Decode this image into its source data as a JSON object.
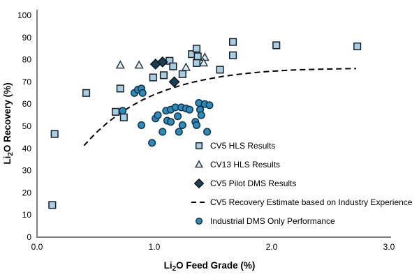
{
  "figure": {
    "background": "#ffffff",
    "axis_color": "#7f7f7f",
    "text_color": "#000000"
  },
  "chart_data": {
    "type": "scatter",
    "title": "",
    "xlabel": {
      "pre": "Li",
      "sub": "2",
      "post": "O Feed Grade (%)"
    },
    "ylabel": {
      "pre": "Li",
      "sub": "2",
      "post": "O Recovery (%)"
    },
    "xlim": [
      0.0,
      3.0
    ],
    "ylim": [
      0,
      100
    ],
    "grid": false,
    "legend_position": "inside-lower-right",
    "xticks": [
      {
        "v": 0.0,
        "label": "0.0"
      },
      {
        "v": 1.0,
        "label": "1.0"
      },
      {
        "v": 2.0,
        "label": "2.0"
      },
      {
        "v": 3.0,
        "label": "3.0"
      }
    ],
    "yticks": [
      {
        "v": 0,
        "label": "0"
      },
      {
        "v": 10,
        "label": "10"
      },
      {
        "v": 20,
        "label": "20"
      },
      {
        "v": 30,
        "label": "30"
      },
      {
        "v": 40,
        "label": "40"
      },
      {
        "v": 50,
        "label": "50"
      },
      {
        "v": 60,
        "label": "60"
      },
      {
        "v": 70,
        "label": "70"
      },
      {
        "v": 80,
        "label": "80"
      },
      {
        "v": 90,
        "label": "90"
      },
      {
        "v": 100,
        "label": "100"
      }
    ],
    "series": [
      {
        "name": "CV5 HLS Results",
        "marker": "square",
        "fill": "#a9cde3",
        "stroke": "#161f29",
        "points": [
          [
            0.13,
            14.5
          ],
          [
            0.15,
            46.5
          ],
          [
            0.42,
            65
          ],
          [
            0.67,
            56.5
          ],
          [
            0.71,
            67
          ],
          [
            0.74,
            54
          ],
          [
            0.99,
            72
          ],
          [
            1.08,
            73
          ],
          [
            1.13,
            79.5
          ],
          [
            1.16,
            77
          ],
          [
            1.24,
            73.5
          ],
          [
            1.32,
            82.5
          ],
          [
            1.36,
            85
          ],
          [
            1.37,
            81.5
          ],
          [
            1.36,
            78.5
          ],
          [
            1.56,
            75.5
          ],
          [
            1.67,
            88
          ],
          [
            1.67,
            82
          ],
          [
            2.04,
            86.5
          ],
          [
            2.73,
            86
          ]
        ]
      },
      {
        "name": "CV13 HLS Results",
        "marker": "triangle",
        "fill": "#e2ecf4",
        "stroke": "#2c3a46",
        "points": [
          [
            0.71,
            77.5
          ],
          [
            0.87,
            77.5
          ],
          [
            1.27,
            76.5
          ],
          [
            1.43,
            81
          ],
          [
            1.42,
            78.5
          ]
        ]
      },
      {
        "name": "CV5 Pilot DMS Results",
        "marker": "diamond",
        "fill": "#1d3d55",
        "stroke": "#0c161f",
        "points": [
          [
            1.01,
            78
          ],
          [
            1.07,
            79
          ],
          [
            1.17,
            70
          ]
        ]
      },
      {
        "name": "CV5 Recovery Estimate based on Industry Experience",
        "marker": "dashed-line",
        "color": "#000000",
        "points": [
          [
            0.4,
            41.3
          ],
          [
            0.5,
            46.9
          ],
          [
            0.6,
            51.6
          ],
          [
            0.7,
            55.6
          ],
          [
            0.8,
            59.0
          ],
          [
            0.9,
            61.9
          ],
          [
            1.0,
            64.3
          ],
          [
            1.1,
            66.3
          ],
          [
            1.2,
            68.0
          ],
          [
            1.3,
            69.5
          ],
          [
            1.4,
            70.7
          ],
          [
            1.5,
            71.7
          ],
          [
            1.6,
            72.6
          ],
          [
            1.7,
            73.3
          ],
          [
            1.8,
            73.9
          ],
          [
            1.9,
            74.4
          ],
          [
            2.0,
            74.8
          ],
          [
            2.2,
            75.4
          ],
          [
            2.4,
            75.7
          ],
          [
            2.6,
            75.9
          ],
          [
            2.72,
            76.0
          ]
        ]
      },
      {
        "name": "Industrial DMS Only Performance",
        "marker": "circle",
        "fill": "#2d8bbc",
        "stroke": "#113349",
        "points": [
          [
            0.73,
            57
          ],
          [
            0.83,
            65
          ],
          [
            0.86,
            66.5
          ],
          [
            0.89,
            67
          ],
          [
            0.9,
            65
          ],
          [
            0.89,
            50.5
          ],
          [
            0.98,
            42.5
          ],
          [
            1.01,
            53.5
          ],
          [
            1.03,
            55
          ],
          [
            1.07,
            47.5
          ],
          [
            1.1,
            57
          ],
          [
            1.11,
            52.5
          ],
          [
            1.14,
            52
          ],
          [
            1.14,
            57.5
          ],
          [
            1.18,
            58.5
          ],
          [
            1.2,
            54.5
          ],
          [
            1.21,
            47.5
          ],
          [
            1.23,
            58.5
          ],
          [
            1.24,
            50.5
          ],
          [
            1.27,
            58
          ],
          [
            1.3,
            57.5
          ],
          [
            1.35,
            52
          ],
          [
            1.36,
            50.5
          ],
          [
            1.38,
            60.5
          ],
          [
            1.39,
            57.5
          ],
          [
            1.4,
            55
          ],
          [
            1.43,
            60
          ],
          [
            1.45,
            47.5
          ],
          [
            1.47,
            59.5
          ]
        ]
      }
    ]
  }
}
